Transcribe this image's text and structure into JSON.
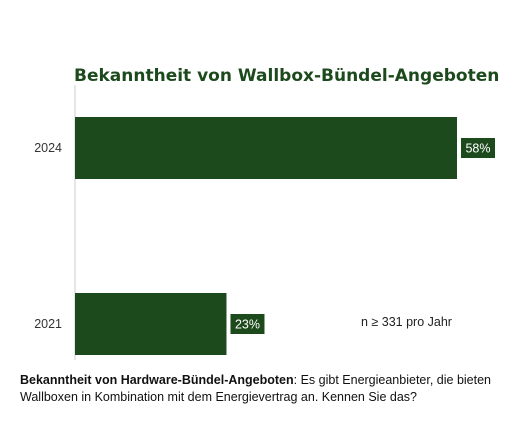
{
  "chart_data": {
    "type": "bar",
    "orientation": "horizontal",
    "title": "Bekanntheit von Wallbox-Bündel-Angeboten",
    "categories": [
      "2024",
      "2021"
    ],
    "values": [
      58,
      23
    ],
    "value_labels": [
      "58%",
      "23%"
    ],
    "xlim": [
      0,
      100
    ],
    "grid": false,
    "legend": "none"
  },
  "note": "n ≥ 331 pro Jahr",
  "caption": {
    "bold": "Bekanntheit von Hardware-Bündel-Angeboten",
    "text": ": Es gibt Energieanbieter, die bieten Wallboxen in Kombination mit dem Energievertrag an. Kennen Sie das?"
  },
  "colors": {
    "bar": "#1d4a1d",
    "label_bg": "#1d4a1d",
    "title": "#1d4a1d",
    "axis": "#cccccc"
  }
}
